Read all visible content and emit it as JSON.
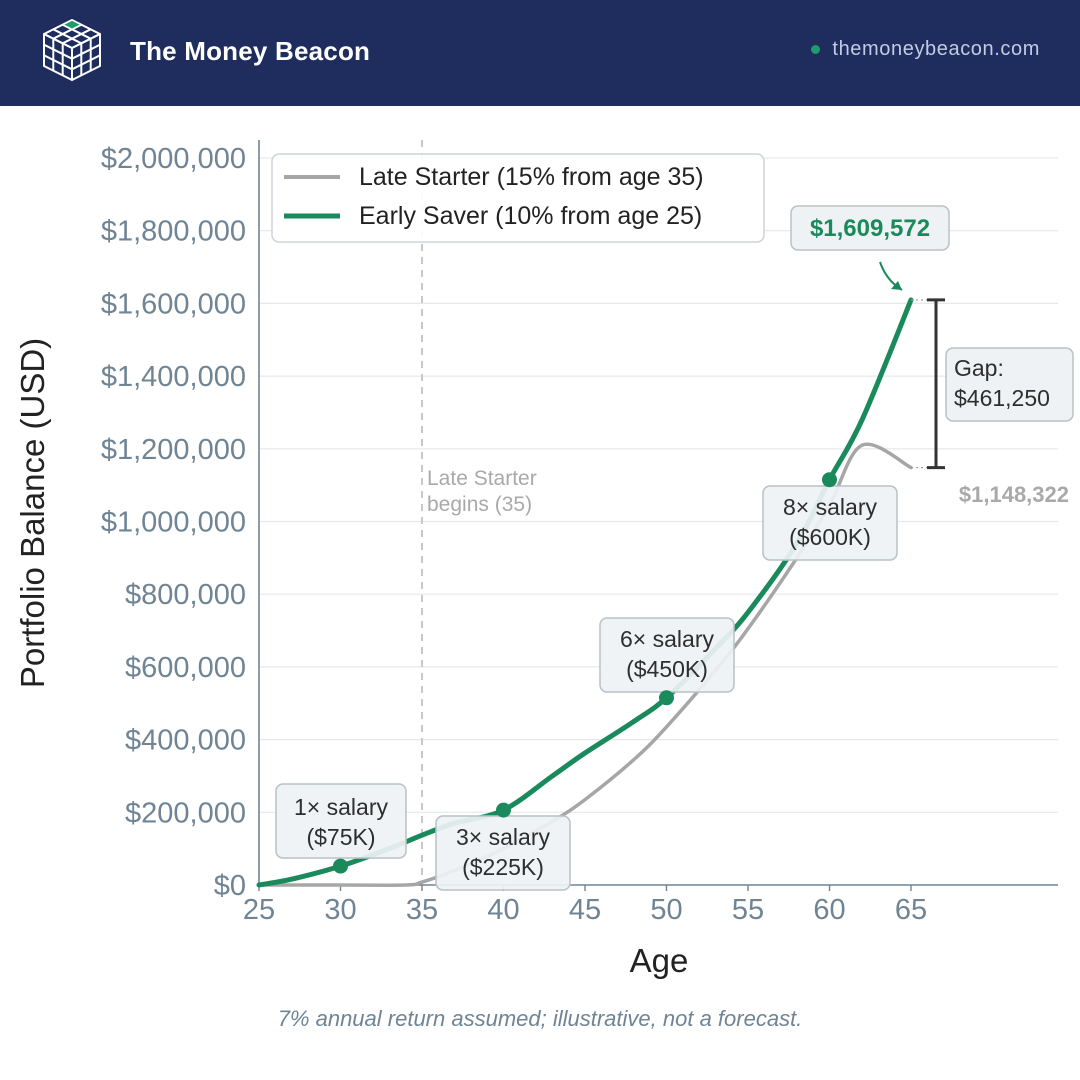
{
  "header": {
    "brand": "The Money Beacon",
    "website": "themoneybeacon.com",
    "logo_icon": "cube-grid-icon"
  },
  "colors": {
    "header_bg": "#1e2c5e",
    "early": "#1a8a5c",
    "late": "#a6a6a6",
    "axis": "#6f8494",
    "annotation_bg": "#eef2f4"
  },
  "chart_data": {
    "type": "line",
    "xlabel": "Age",
    "ylabel": "Portfolio Balance (USD)",
    "xlim": [
      25,
      65
    ],
    "ylim": [
      0,
      2000000
    ],
    "xticks": [
      25,
      30,
      35,
      40,
      45,
      50,
      55,
      60,
      65
    ],
    "xtick_labels": [
      "25",
      "30",
      "35",
      "40",
      "45",
      "50",
      "55",
      "60",
      "65"
    ],
    "yticks": [
      0,
      200000,
      400000,
      600000,
      800000,
      1000000,
      1200000,
      1400000,
      1600000,
      1800000,
      2000000
    ],
    "ytick_labels": [
      "$0",
      "$200,000",
      "$400,000",
      "$600,000",
      "$800,000",
      "$1,000,000",
      "$1,200,000",
      "$1,400,000",
      "$1,600,000",
      "$1,800,000",
      "$2,000,000"
    ],
    "grid": "horizontal",
    "legend": "top-left",
    "series": [
      {
        "name": "Late Starter (15% from age 35)",
        "color": "#a6a6a6",
        "x": [
          25,
          30,
          34,
          35,
          37,
          40,
          43,
          45,
          48,
          50,
          53,
          55,
          58,
          60,
          62,
          65
        ],
        "y": [
          0,
          0,
          0,
          8000,
          40000,
          100000,
          175000,
          235000,
          345000,
          435000,
          590000,
          705000,
          900000,
          1045000,
          1210000,
          1148322
        ]
      },
      {
        "name": "Early Saver (10% from age 25)",
        "color": "#1a8a5c",
        "x": [
          25,
          27,
          30,
          33,
          35,
          37,
          40,
          43,
          45,
          48,
          50,
          53,
          55,
          58,
          60,
          62,
          65
        ],
        "y": [
          0,
          16000,
          52000,
          100000,
          137000,
          170000,
          206000,
          300000,
          363000,
          450000,
          515000,
          650000,
          750000,
          940000,
          1115000,
          1280000,
          1609572
        ]
      }
    ],
    "milestones": [
      {
        "x": 30,
        "y": 52000,
        "label_line1": "1× salary",
        "label_line2": "($75K)"
      },
      {
        "x": 40,
        "y": 206000,
        "label_line1": "3× salary",
        "label_line2": "($225K)"
      },
      {
        "x": 50,
        "y": 515000,
        "label_line1": "6× salary",
        "label_line2": "($450K)"
      },
      {
        "x": 60,
        "y": 1115000,
        "label_line1": "8× salary",
        "label_line2": "($600K)"
      }
    ],
    "vline": {
      "x": 35,
      "label_line1": "Late Starter",
      "label_line2": "begins (35)"
    },
    "end_labels": {
      "early": "$1,609,572",
      "late": "$1,148,322",
      "gap_line1": "Gap:",
      "gap_line2": "$461,250"
    }
  },
  "footnote": "7% annual return assumed; illustrative, not a forecast."
}
